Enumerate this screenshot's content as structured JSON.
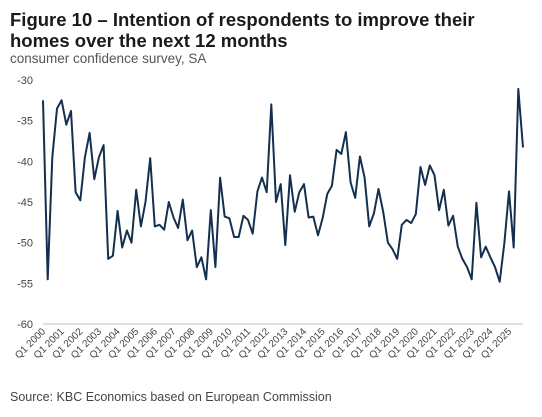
{
  "title": "Figure 10 – Intention of respondents to improve their homes over the next 12 months",
  "subtitle": "consumer confidence survey, SA",
  "source": "Source: KBC Economics based on European Commission",
  "colors": {
    "line": "#14304f",
    "axis": "#bfbfbf"
  },
  "chart_data": {
    "type": "line",
    "title": "Figure 10 – Intention of respondents to improve their homes over the next 12 months",
    "subtitle": "consumer confidence survey, SA",
    "xlabel": "",
    "ylabel": "",
    "ylim": [
      -60,
      -30
    ],
    "yticks": [
      -30,
      -35,
      -40,
      -45,
      -50,
      -55,
      -60
    ],
    "grid": false,
    "legend": "none",
    "x_tick_labels": [
      "Q1 2000",
      "Q1 2001",
      "Q1 2002",
      "Q1 2003",
      "Q1 2004",
      "Q1 2005",
      "Q1 2006",
      "Q1 2007",
      "Q1 2008",
      "Q1 2009",
      "Q1 2010",
      "Q1 2011",
      "Q1 2012",
      "Q1 2013",
      "Q1 2014",
      "Q1 2015",
      "Q1 2016",
      "Q1 2017",
      "Q1 2018",
      "Q1 2019",
      "Q1 2020",
      "Q1 2021",
      "Q1 2022",
      "Q1 2023",
      "Q1 2024",
      "Q1 2025"
    ],
    "x": [
      "Q1 2000",
      "Q2 2000",
      "Q3 2000",
      "Q4 2000",
      "Q1 2001",
      "Q2 2001",
      "Q3 2001",
      "Q4 2001",
      "Q1 2002",
      "Q2 2002",
      "Q3 2002",
      "Q4 2002",
      "Q1 2003",
      "Q2 2003",
      "Q3 2003",
      "Q4 2003",
      "Q1 2004",
      "Q2 2004",
      "Q3 2004",
      "Q4 2004",
      "Q1 2005",
      "Q2 2005",
      "Q3 2005",
      "Q4 2005",
      "Q1 2006",
      "Q2 2006",
      "Q3 2006",
      "Q4 2006",
      "Q1 2007",
      "Q2 2007",
      "Q3 2007",
      "Q4 2007",
      "Q1 2008",
      "Q2 2008",
      "Q3 2008",
      "Q4 2008",
      "Q1 2009",
      "Q2 2009",
      "Q3 2009",
      "Q4 2009",
      "Q1 2010",
      "Q2 2010",
      "Q3 2010",
      "Q4 2010",
      "Q1 2011",
      "Q2 2011",
      "Q3 2011",
      "Q4 2011",
      "Q1 2012",
      "Q2 2012",
      "Q3 2012",
      "Q4 2012",
      "Q1 2013",
      "Q2 2013",
      "Q3 2013",
      "Q4 2013",
      "Q1 2014",
      "Q2 2014",
      "Q3 2014",
      "Q4 2014",
      "Q1 2015",
      "Q2 2015",
      "Q3 2015",
      "Q4 2015",
      "Q1 2016",
      "Q2 2016",
      "Q3 2016",
      "Q4 2016",
      "Q1 2017",
      "Q2 2017",
      "Q3 2017",
      "Q4 2017",
      "Q1 2018",
      "Q2 2018",
      "Q3 2018",
      "Q4 2018",
      "Q1 2019",
      "Q2 2019",
      "Q3 2019",
      "Q4 2019",
      "Q1 2020",
      "Q2 2020",
      "Q3 2020",
      "Q4 2020",
      "Q1 2021",
      "Q2 2021",
      "Q3 2021",
      "Q4 2021",
      "Q1 2022",
      "Q2 2022",
      "Q3 2022",
      "Q4 2022",
      "Q1 2023",
      "Q2 2023",
      "Q3 2023",
      "Q4 2023",
      "Q1 2024",
      "Q2 2024",
      "Q3 2024",
      "Q4 2024",
      "Q1 2025",
      "Q2 2025",
      "Q3 2025",
      "Q4 2025"
    ],
    "series": [
      {
        "name": "",
        "values": [
          -32.5,
          -54.5,
          -39.5,
          -33.5,
          -32.5,
          -35.5,
          -33.8,
          -43.8,
          -44.8,
          -39.5,
          -36.5,
          -42.2,
          -39.5,
          -38.0,
          -52.0,
          -51.6,
          -46.1,
          -50.6,
          -48.5,
          -50.0,
          -43.5,
          -48.0,
          -45.0,
          -39.6,
          -48.0,
          -47.8,
          -48.4,
          -45.0,
          -46.9,
          -48.2,
          -44.7,
          -49.7,
          -48.5,
          -53.0,
          -51.8,
          -54.5,
          -46.0,
          -53.0,
          -42.0,
          -46.8,
          -47.0,
          -49.3,
          -49.3,
          -46.7,
          -47.2,
          -48.9,
          -43.7,
          -42.0,
          -43.8,
          -33.0,
          -45.0,
          -42.8,
          -50.3,
          -41.7,
          -46.2,
          -43.8,
          -42.8,
          -46.9,
          -46.8,
          -49.1,
          -47.0,
          -44.0,
          -43.0,
          -38.6,
          -39.1,
          -36.4,
          -42.6,
          -44.5,
          -39.4,
          -42.0,
          -48.0,
          -46.4,
          -43.4,
          -46.2,
          -50.0,
          -50.8,
          -52.0,
          -47.8,
          -47.2,
          -47.6,
          -46.5,
          -40.7,
          -42.9,
          -40.5,
          -41.7,
          -46.0,
          -43.5,
          -47.9,
          -46.7,
          -50.5,
          -52.0,
          -53.0,
          -54.5,
          -45.1,
          -51.8,
          -50.5,
          -51.8,
          -53.0,
          -54.8,
          -50.0,
          -43.7,
          -50.6,
          -31.1,
          -38.3
        ]
      }
    ]
  }
}
